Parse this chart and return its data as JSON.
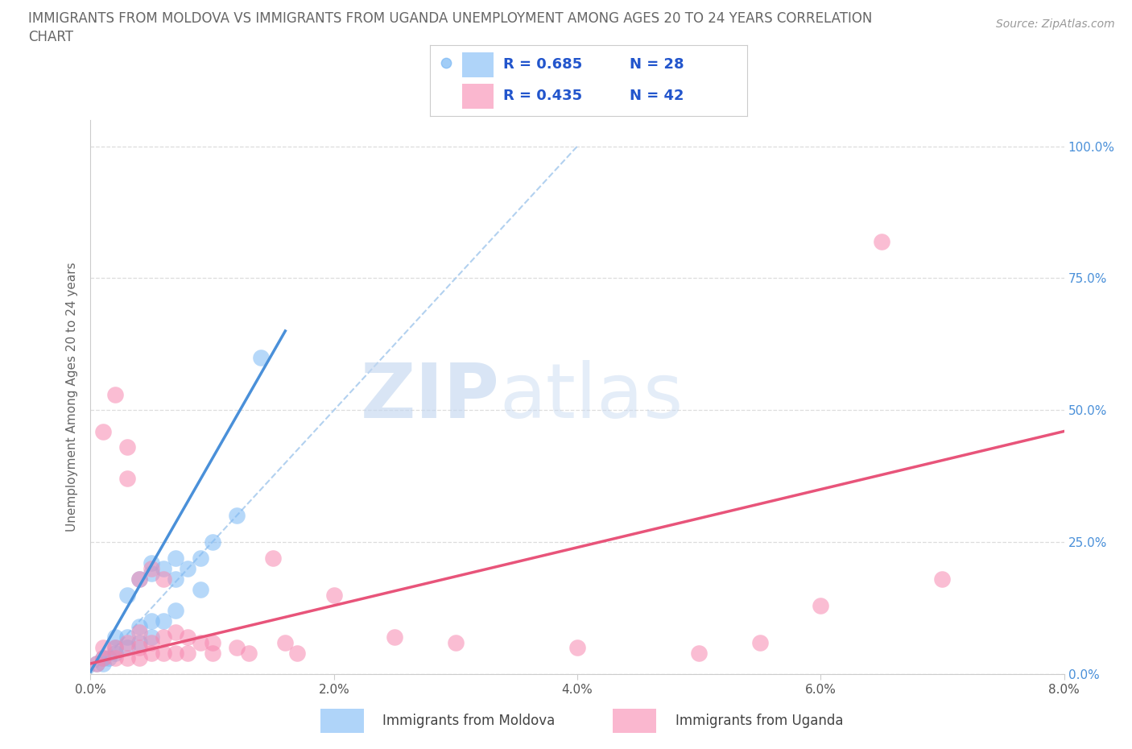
{
  "title_line1": "IMMIGRANTS FROM MOLDOVA VS IMMIGRANTS FROM UGANDA UNEMPLOYMENT AMONG AGES 20 TO 24 YEARS CORRELATION",
  "title_line2": "CHART",
  "source": "Source: ZipAtlas.com",
  "ylabel": "Unemployment Among Ages 20 to 24 years",
  "xlabel_moldova": "Immigrants from Moldova",
  "xlabel_uganda": "Immigrants from Uganda",
  "xlim": [
    0.0,
    0.08
  ],
  "ylim": [
    0.0,
    1.05
  ],
  "yticks": [
    0.0,
    0.25,
    0.5,
    0.75,
    1.0
  ],
  "ytick_labels": [
    "0.0%",
    "25.0%",
    "50.0%",
    "75.0%",
    "100.0%"
  ],
  "xticks": [
    0.0,
    0.02,
    0.04,
    0.06,
    0.08
  ],
  "xtick_labels": [
    "0.0%",
    "2.0%",
    "4.0%",
    "6.0%",
    "8.0%"
  ],
  "moldova_color": "#7ab8f5",
  "moldova_color_line": "#4a90d9",
  "uganda_color": "#f788b0",
  "uganda_color_line": "#e8547a",
  "legend_text_color": "#2255cc",
  "moldova_R": 0.685,
  "moldova_N": 28,
  "uganda_R": 0.435,
  "uganda_N": 42,
  "watermark_zip": "ZIP",
  "watermark_atlas": "atlas",
  "title_color": "#666666",
  "ylabel_color": "#666666",
  "tick_color": "#4a90d9",
  "grid_color": "#dddddd",
  "diag_color": "#aaccee",
  "moldova_scatter_x": [
    0.0005,
    0.001,
    0.001,
    0.0015,
    0.002,
    0.002,
    0.002,
    0.003,
    0.003,
    0.003,
    0.004,
    0.004,
    0.004,
    0.005,
    0.005,
    0.005,
    0.005,
    0.006,
    0.006,
    0.007,
    0.007,
    0.007,
    0.008,
    0.009,
    0.009,
    0.01,
    0.012,
    0.014
  ],
  "moldova_scatter_y": [
    0.02,
    0.02,
    0.03,
    0.03,
    0.04,
    0.05,
    0.07,
    0.05,
    0.07,
    0.15,
    0.06,
    0.09,
    0.18,
    0.07,
    0.1,
    0.19,
    0.21,
    0.1,
    0.2,
    0.12,
    0.18,
    0.22,
    0.2,
    0.16,
    0.22,
    0.25,
    0.3,
    0.6
  ],
  "uganda_scatter_x": [
    0.0005,
    0.001,
    0.001,
    0.001,
    0.002,
    0.002,
    0.002,
    0.003,
    0.003,
    0.003,
    0.003,
    0.004,
    0.004,
    0.004,
    0.004,
    0.005,
    0.005,
    0.005,
    0.006,
    0.006,
    0.006,
    0.007,
    0.007,
    0.008,
    0.008,
    0.009,
    0.01,
    0.01,
    0.012,
    0.013,
    0.015,
    0.016,
    0.017,
    0.02,
    0.025,
    0.03,
    0.04,
    0.05,
    0.055,
    0.06,
    0.065,
    0.07
  ],
  "uganda_scatter_y": [
    0.02,
    0.03,
    0.05,
    0.46,
    0.03,
    0.05,
    0.53,
    0.03,
    0.06,
    0.37,
    0.43,
    0.03,
    0.05,
    0.08,
    0.18,
    0.04,
    0.06,
    0.2,
    0.04,
    0.07,
    0.18,
    0.04,
    0.08,
    0.04,
    0.07,
    0.06,
    0.04,
    0.06,
    0.05,
    0.04,
    0.22,
    0.06,
    0.04,
    0.15,
    0.07,
    0.06,
    0.05,
    0.04,
    0.06,
    0.13,
    0.82,
    0.18
  ],
  "moldova_trend_x": [
    0.0,
    0.016
  ],
  "moldova_trend_y": [
    0.005,
    0.65
  ],
  "uganda_trend_x": [
    0.0,
    0.08
  ],
  "uganda_trend_y": [
    0.02,
    0.46
  ]
}
